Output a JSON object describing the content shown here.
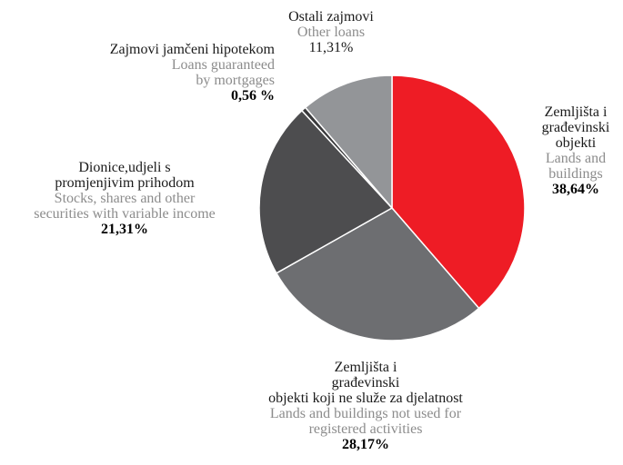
{
  "chart_data": {
    "type": "pie",
    "start_angle_deg": 0,
    "direction": "clockwise",
    "slices": [
      {
        "label_hr": [
          "Zemljišta i",
          "građevinski",
          "objekti"
        ],
        "label_en": [
          "Lands and",
          "buildings"
        ],
        "value": 38.64,
        "value_label": "38,64%",
        "color": "#ee1c25"
      },
      {
        "label_hr": [
          "Zemljišta i",
          "građevinski",
          "objekti koji ne služe za djelatnost"
        ],
        "label_en": [
          "Lands and buildings not used for",
          "registered activities"
        ],
        "value": 28.17,
        "value_label": "28,17%",
        "color": "#6d6e71"
      },
      {
        "label_hr": [
          "Dionice,udjeli s",
          "promjenjivim prihodom"
        ],
        "label_en": [
          "Stocks, shares and other",
          "securities with variable income"
        ],
        "value": 21.31,
        "value_label": "21,31%",
        "color": "#4d4d4f"
      },
      {
        "label_hr": [
          "Zajmovi jamčeni hipotekom"
        ],
        "label_en": [
          "Loans guaranteed",
          "by mortgages"
        ],
        "value": 0.56,
        "value_label": "0,56 %",
        "color": "#3a3a3c"
      },
      {
        "label_hr": [
          "Ostali zajmovi"
        ],
        "label_en": [
          "Other loans"
        ],
        "value": 11.31,
        "value_label": "11,31%",
        "color": "#939598"
      }
    ]
  }
}
